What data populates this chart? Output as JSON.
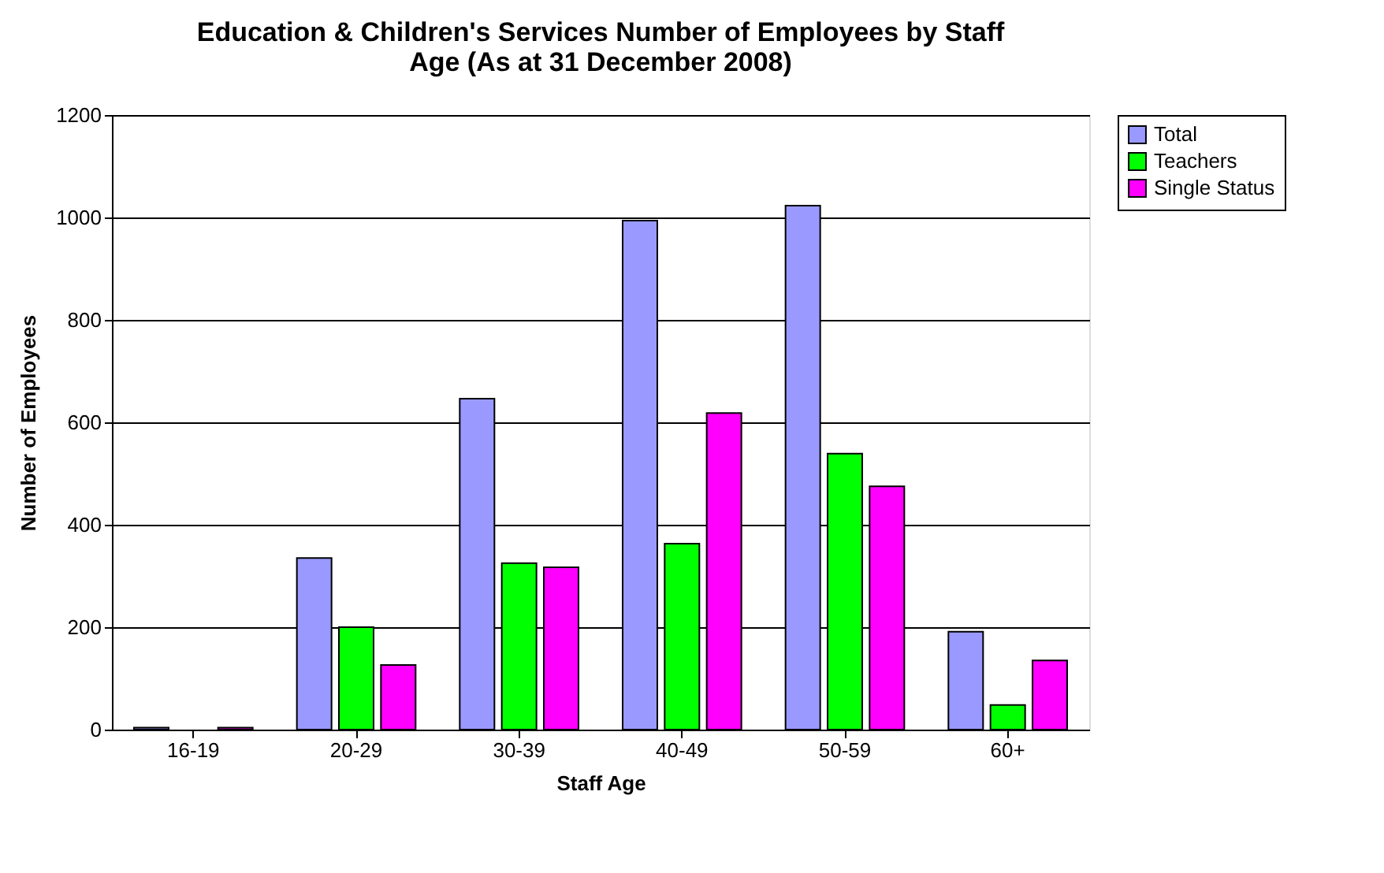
{
  "chart_data": {
    "type": "bar",
    "title": [
      "Education & Children's Services Number of Employees by Staff",
      "Age (As at 31 December 2008)"
    ],
    "xlabel": "Staff Age",
    "ylabel": "Number of Employees",
    "categories": [
      "16-19",
      "20-29",
      "30-39",
      "40-49",
      "50-59",
      "60+"
    ],
    "series": [
      {
        "name": "Total",
        "color": "#9999ff",
        "values": [
          4,
          335,
          646,
          994,
          1023,
          191
        ]
      },
      {
        "name": "Teachers",
        "color": "#00ff00",
        "values": [
          null,
          200,
          325,
          363,
          539,
          48
        ]
      },
      {
        "name": "Single Status",
        "color": "#ff00ff",
        "values": [
          4,
          126,
          317,
          618,
          475,
          135
        ]
      }
    ],
    "ylim": [
      0,
      1200
    ],
    "yticks": [
      0,
      200,
      400,
      600,
      800,
      1000,
      1200
    ],
    "grid": "y",
    "legend": "right"
  }
}
